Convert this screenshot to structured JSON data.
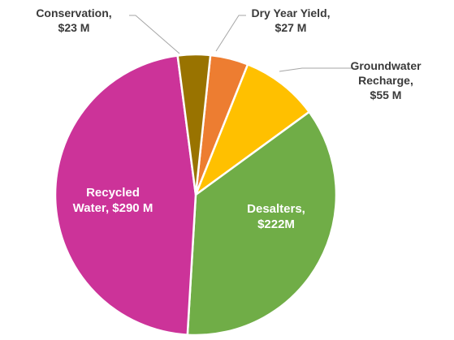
{
  "chart_data": {
    "type": "pie",
    "unit": "$M",
    "slices": [
      {
        "name": "Dry Year Yield",
        "value": 27,
        "color": "#ED7D31",
        "label_lines": [
          "Dry Year Yield,",
          "$27 M"
        ]
      },
      {
        "name": "Groundwater Recharge",
        "value": 55,
        "color": "#FFC000",
        "label_lines": [
          "Groundwater",
          "Recharge,",
          "$55 M"
        ]
      },
      {
        "name": "Desalters",
        "value": 222,
        "color": "#70AD47",
        "label_lines": [
          "Desalters,",
          "$222M"
        ]
      },
      {
        "name": "Recycled Water",
        "value": 290,
        "color": "#CC3399",
        "label_lines": [
          "Recycled",
          "Water, $290 M"
        ]
      },
      {
        "name": "Conservation",
        "value": 23,
        "color": "#997300",
        "label_lines": [
          "Conservation,",
          "$23 M"
        ]
      }
    ]
  }
}
